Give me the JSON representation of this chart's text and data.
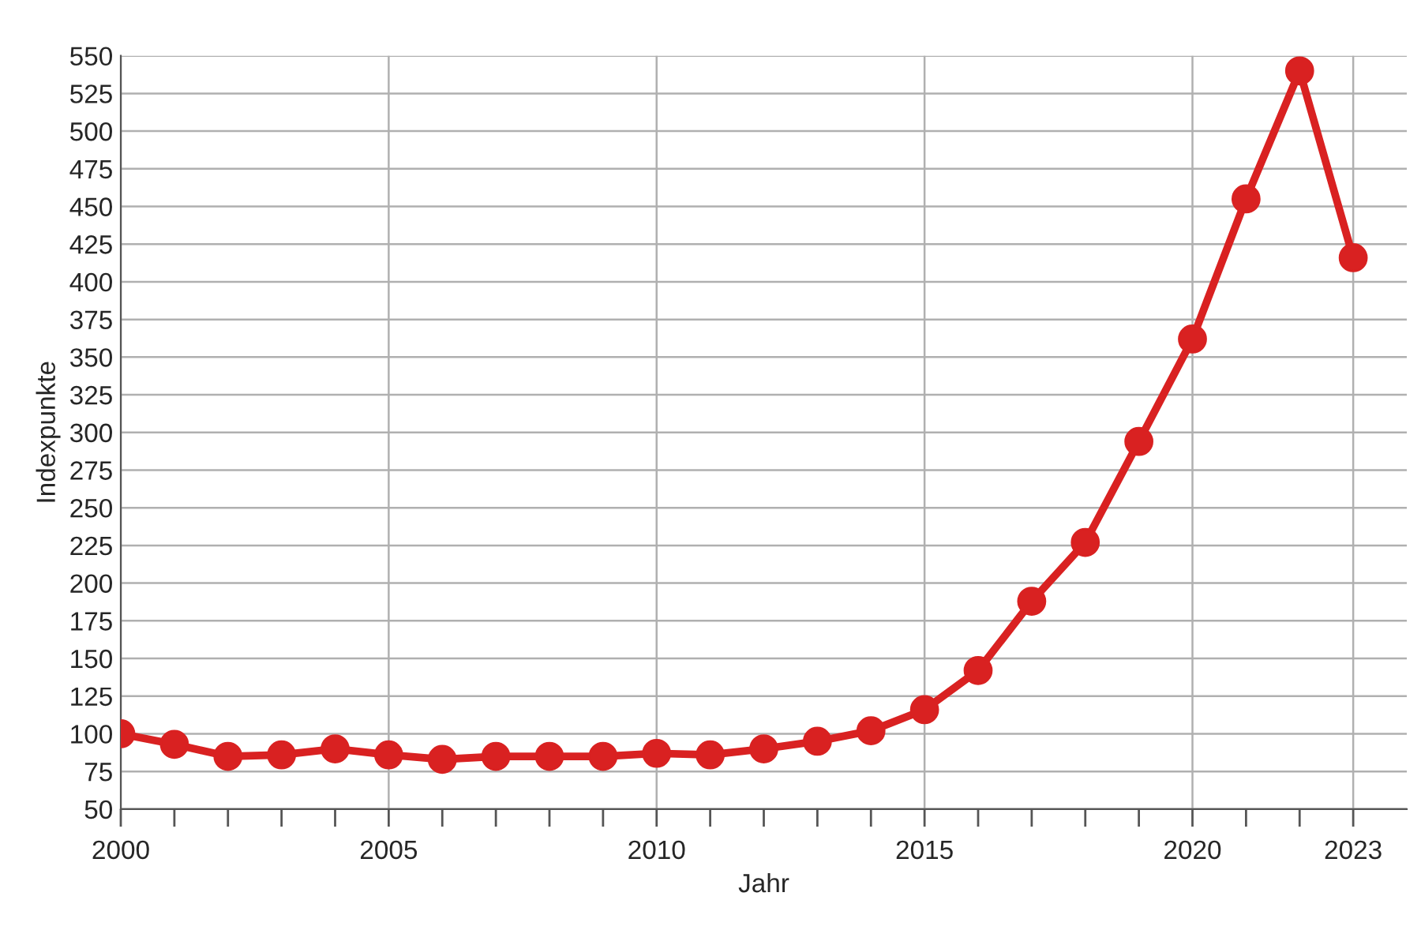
{
  "chart_data": {
    "type": "line",
    "xlabel": "Jahr",
    "ylabel": "Indexpunkte",
    "x": [
      2000,
      2001,
      2002,
      2003,
      2004,
      2005,
      2006,
      2007,
      2008,
      2009,
      2010,
      2011,
      2012,
      2013,
      2014,
      2015,
      2016,
      2017,
      2018,
      2019,
      2020,
      2021,
      2022,
      2023
    ],
    "series": [
      {
        "color": "#d92121",
        "values": [
          100,
          93,
          85,
          86,
          90,
          86,
          83,
          85,
          85,
          85,
          87,
          86,
          90,
          95,
          102,
          116,
          142,
          188,
          227,
          294,
          362,
          455,
          540,
          416
        ]
      }
    ],
    "xlim": [
      2000,
      2024
    ],
    "ylim": [
      50,
      550
    ],
    "xticks": [
      2000,
      {
        "value": 2001,
        "label": null
      },
      {
        "value": 2002,
        "label": null
      },
      {
        "value": 2003,
        "label": null
      },
      {
        "value": 2004,
        "label": null
      },
      2005,
      {
        "value": 2006,
        "label": null
      },
      {
        "value": 2007,
        "label": null
      },
      {
        "value": 2008,
        "label": null
      },
      {
        "value": 2009,
        "label": null
      },
      2010,
      {
        "value": 2011,
        "label": null
      },
      {
        "value": 2012,
        "label": null
      },
      {
        "value": 2013,
        "label": null
      },
      {
        "value": 2014,
        "label": null
      },
      2015,
      {
        "value": 2016,
        "label": null
      },
      {
        "value": 2017,
        "label": null
      },
      {
        "value": 2018,
        "label": null
      },
      {
        "value": 2019,
        "label": null
      },
      2020,
      {
        "value": 2021,
        "label": null
      },
      {
        "value": 2022,
        "label": null
      },
      2023
    ],
    "yticks": [
      50,
      75,
      100,
      125,
      150,
      175,
      200,
      225,
      250,
      275,
      300,
      325,
      350,
      375,
      400,
      425,
      450,
      475,
      500,
      525,
      550
    ],
    "grid": true,
    "marker": "circle",
    "line_style": "solid",
    "legend": false
  }
}
